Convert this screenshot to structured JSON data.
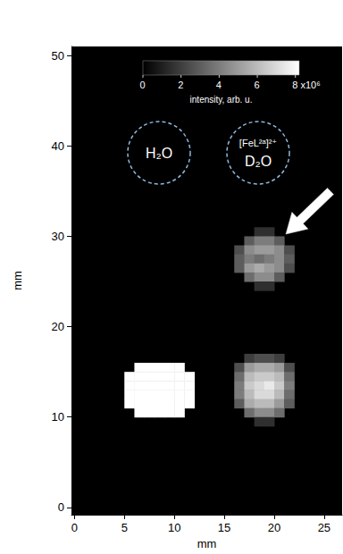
{
  "chart_data": {
    "type": "heatmap",
    "x_label": "mm",
    "y_label": "mm",
    "xlim": [
      -0.3,
      26.8
    ],
    "xticks": [
      0,
      5,
      10,
      15,
      20,
      25
    ],
    "ylim": [
      -0.8,
      51
    ],
    "yticks": [
      0,
      10,
      20,
      30,
      40,
      50
    ],
    "grid": false,
    "cell_width": 1,
    "cells": [
      [
        6.5,
        15.5,
        9000000
      ],
      [
        7.5,
        15.5,
        9000000
      ],
      [
        8.5,
        15.5,
        9000000
      ],
      [
        9.5,
        15.5,
        9000000
      ],
      [
        10.5,
        15.5,
        9000000
      ],
      [
        5.5,
        14.5,
        9000000
      ],
      [
        6.5,
        14.5,
        12000000
      ],
      [
        7.5,
        14.5,
        12000000
      ],
      [
        8.5,
        14.5,
        12000000
      ],
      [
        9.5,
        14.5,
        12000000
      ],
      [
        10.5,
        14.5,
        12000000
      ],
      [
        11.5,
        14.5,
        9000000
      ],
      [
        5.5,
        13.5,
        9000000
      ],
      [
        6.5,
        13.5,
        12000000
      ],
      [
        7.5,
        13.5,
        12000000
      ],
      [
        8.5,
        13.5,
        12000000
      ],
      [
        9.5,
        13.5,
        12000000
      ],
      [
        10.5,
        13.5,
        12000000
      ],
      [
        11.5,
        13.5,
        9000000
      ],
      [
        5.5,
        12.5,
        9000000
      ],
      [
        6.5,
        12.5,
        12000000
      ],
      [
        7.5,
        12.5,
        12000000
      ],
      [
        8.5,
        12.5,
        12000000
      ],
      [
        9.5,
        12.5,
        12000000
      ],
      [
        10.5,
        12.5,
        12000000
      ],
      [
        11.5,
        12.5,
        9000000
      ],
      [
        5.5,
        11.5,
        9000000
      ],
      [
        6.5,
        11.5,
        12000000
      ],
      [
        7.5,
        11.5,
        12000000
      ],
      [
        8.5,
        11.5,
        12000000
      ],
      [
        9.5,
        11.5,
        12000000
      ],
      [
        10.5,
        11.5,
        12000000
      ],
      [
        11.5,
        11.5,
        9000000
      ],
      [
        6.5,
        10.5,
        9000000
      ],
      [
        7.5,
        10.5,
        9000000
      ],
      [
        8.5,
        10.5,
        9000000
      ],
      [
        9.5,
        10.5,
        9000000
      ],
      [
        10.5,
        10.5,
        9000000
      ],
      [
        17.5,
        16.5,
        2000000
      ],
      [
        18.5,
        16.5,
        2500000
      ],
      [
        19.5,
        16.5,
        2500000
      ],
      [
        20.5,
        16.5,
        2000000
      ],
      [
        16.5,
        15.5,
        2500000
      ],
      [
        17.5,
        15.5,
        5000000
      ],
      [
        18.5,
        15.5,
        5500000
      ],
      [
        19.5,
        15.5,
        5500000
      ],
      [
        20.5,
        15.5,
        5000000
      ],
      [
        21.5,
        15.5,
        2500000
      ],
      [
        16.5,
        14.5,
        3500000
      ],
      [
        17.5,
        14.5,
        6000000
      ],
      [
        18.5,
        14.5,
        6500000
      ],
      [
        19.5,
        14.5,
        6500000
      ],
      [
        20.5,
        14.5,
        6000000
      ],
      [
        21.5,
        14.5,
        3500000
      ],
      [
        16.5,
        13.5,
        4000000
      ],
      [
        17.5,
        13.5,
        6500000
      ],
      [
        18.5,
        13.5,
        7000000
      ],
      [
        19.5,
        13.5,
        7500000
      ],
      [
        20.5,
        13.5,
        6500000
      ],
      [
        21.5,
        13.5,
        4000000
      ],
      [
        16.5,
        12.5,
        4000000
      ],
      [
        17.5,
        12.5,
        6000000
      ],
      [
        18.5,
        12.5,
        7000000
      ],
      [
        19.5,
        12.5,
        7000000
      ],
      [
        20.5,
        12.5,
        6000000
      ],
      [
        21.5,
        12.5,
        3500000
      ],
      [
        16.5,
        11.5,
        3000000
      ],
      [
        17.5,
        11.5,
        5500000
      ],
      [
        18.5,
        11.5,
        6000000
      ],
      [
        19.5,
        11.5,
        6000000
      ],
      [
        20.5,
        11.5,
        5000000
      ],
      [
        21.5,
        11.5,
        3000000
      ],
      [
        17.5,
        10.5,
        3500000
      ],
      [
        18.5,
        10.5,
        4500000
      ],
      [
        19.5,
        10.5,
        4500000
      ],
      [
        20.5,
        10.5,
        3500000
      ],
      [
        18.5,
        9.5,
        1500000
      ],
      [
        19.5,
        9.5,
        1500000
      ],
      [
        18.5,
        30.5,
        1500000
      ],
      [
        19.5,
        30.5,
        1500000
      ],
      [
        17.5,
        29.5,
        3000000
      ],
      [
        18.5,
        29.5,
        4000000
      ],
      [
        19.5,
        29.5,
        4000000
      ],
      [
        20.5,
        29.5,
        3000000
      ],
      [
        16.5,
        28.5,
        2500000
      ],
      [
        17.5,
        28.5,
        4500000
      ],
      [
        18.5,
        28.5,
        5000000
      ],
      [
        19.5,
        28.5,
        5000000
      ],
      [
        20.5,
        28.5,
        4500000
      ],
      [
        21.5,
        28.5,
        2500000
      ],
      [
        16.5,
        27.5,
        3000000
      ],
      [
        17.5,
        27.5,
        4000000
      ],
      [
        18.5,
        27.5,
        3500000
      ],
      [
        19.5,
        27.5,
        4000000
      ],
      [
        20.5,
        27.5,
        4500000
      ],
      [
        21.5,
        27.5,
        3000000
      ],
      [
        16.5,
        26.5,
        3000000
      ],
      [
        17.5,
        26.5,
        5000000
      ],
      [
        18.5,
        26.5,
        5500000
      ],
      [
        19.5,
        26.5,
        5000000
      ],
      [
        20.5,
        26.5,
        4500000
      ],
      [
        21.5,
        26.5,
        2500000
      ],
      [
        17.5,
        25.5,
        3500000
      ],
      [
        18.5,
        25.5,
        4500000
      ],
      [
        19.5,
        25.5,
        4500000
      ],
      [
        20.5,
        25.5,
        3000000
      ],
      [
        18.5,
        24.5,
        1500000
      ],
      [
        19.5,
        24.5,
        1500000
      ]
    ],
    "colorbar_range": [
      0,
      8200000
    ],
    "colorbar_ticks": [
      {
        "value": 0,
        "label": "0"
      },
      {
        "value": 2000000,
        "label": "2"
      },
      {
        "value": 4000000,
        "label": "4"
      },
      {
        "value": 6000000,
        "label": "6"
      },
      {
        "value": 8000000,
        "label": "8 x10⁶"
      }
    ],
    "colorbar_label": "intensity, arb. u.",
    "annotations": [
      "H₂O",
      "[FeL²ᵃ]²⁺",
      "D₂O"
    ]
  }
}
